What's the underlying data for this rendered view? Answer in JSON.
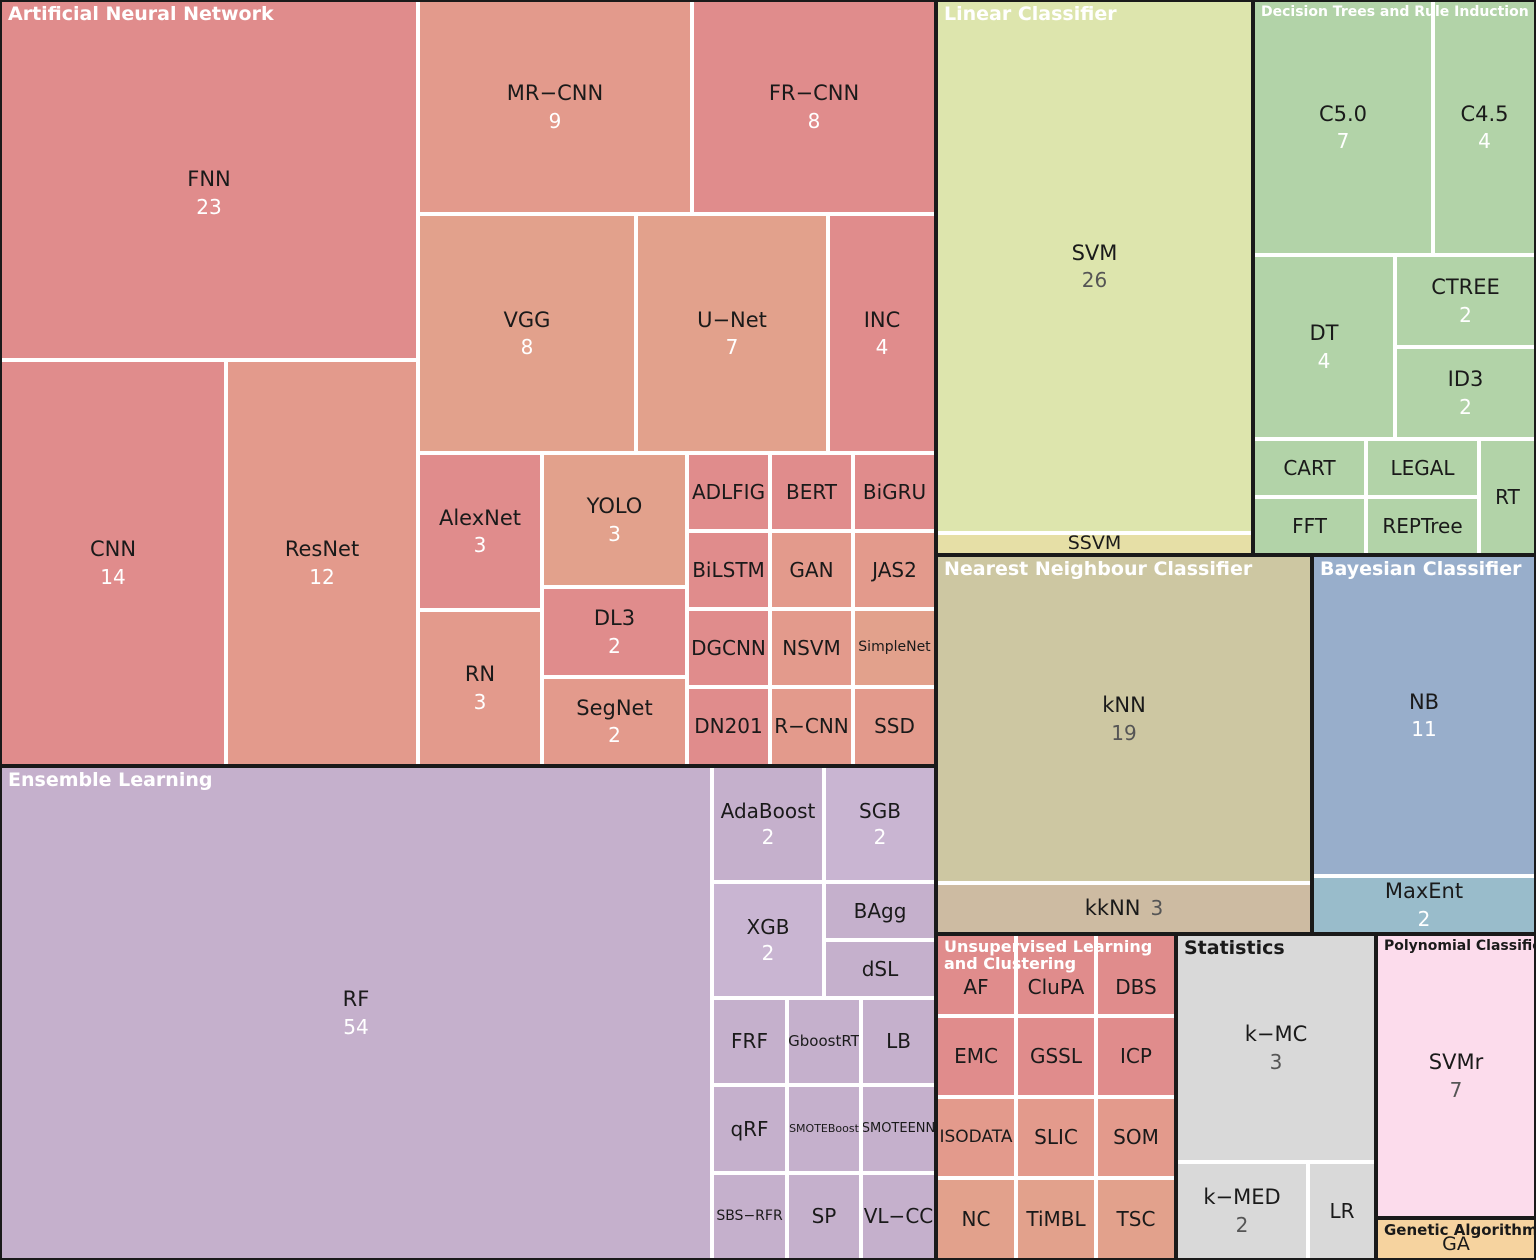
{
  "chart_data": {
    "type": "treemap",
    "groups": [
      {
        "name": "Artificial Neural Network",
        "color": "#e08c8c",
        "children": [
          {
            "label": "FNN",
            "value": 23,
            "color": "#e08c8c"
          },
          {
            "label": "CNN",
            "value": 14,
            "color": "#e08c8c"
          },
          {
            "label": "ResNet",
            "value": 12,
            "color": "#e39a8c"
          },
          {
            "label": "MR−CNN",
            "value": 9,
            "color": "#e39a8c"
          },
          {
            "label": "FR−CNN",
            "value": 8,
            "color": "#e08c8c"
          },
          {
            "label": "VGG",
            "value": 8,
            "color": "#e2a18c"
          },
          {
            "label": "U−Net",
            "value": 7,
            "color": "#e2a18c"
          },
          {
            "label": "INC",
            "value": 4,
            "color": "#e08c8c"
          },
          {
            "label": "AlexNet",
            "value": 3,
            "color": "#e08c8c"
          },
          {
            "label": "YOLO",
            "value": 3,
            "color": "#e2a18c"
          },
          {
            "label": "RN",
            "value": 3,
            "color": "#e39a8c"
          },
          {
            "label": "DL3",
            "value": 2,
            "color": "#e08c8c"
          },
          {
            "label": "SegNet",
            "value": 2,
            "color": "#e39a8c"
          },
          {
            "label": "ADLFIG",
            "color": "#e08c8c"
          },
          {
            "label": "BERT",
            "color": "#e08c8c"
          },
          {
            "label": "BiGRU",
            "color": "#e08c8c"
          },
          {
            "label": "BiLSTM",
            "color": "#e08c8c"
          },
          {
            "label": "GAN",
            "color": "#e39a8c"
          },
          {
            "label": "JAS2",
            "color": "#e39a8c"
          },
          {
            "label": "DGCNN",
            "color": "#e08c8c"
          },
          {
            "label": "NSVM",
            "color": "#e39a8c"
          },
          {
            "label": "SimpleNet",
            "color": "#e2a18c"
          },
          {
            "label": "DN201",
            "color": "#e08c8c"
          },
          {
            "label": "R−CNN",
            "color": "#e39a8c"
          },
          {
            "label": "SSD",
            "color": "#e39a8c"
          }
        ]
      },
      {
        "name": "Linear Classifier",
        "color": "#dde5ad",
        "children": [
          {
            "label": "SVM",
            "value": 26,
            "color": "#dde5ad"
          },
          {
            "label": "SSVM",
            "color": "#e6dfa6"
          }
        ]
      },
      {
        "name": "Decision Trees and Rule Induction",
        "color": "#b2d3a8",
        "children": [
          {
            "label": "C5.0",
            "value": 7,
            "color": "#b2d3a8"
          },
          {
            "label": "C4.5",
            "value": 4,
            "color": "#b2d3a8"
          },
          {
            "label": "DT",
            "value": 4,
            "color": "#b2d3a8"
          },
          {
            "label": "CTREE",
            "value": 2,
            "color": "#b2d3a8"
          },
          {
            "label": "ID3",
            "value": 2,
            "color": "#b2d3a8"
          },
          {
            "label": "CART",
            "color": "#b2d3a8"
          },
          {
            "label": "LEGAL",
            "color": "#b2d3a8"
          },
          {
            "label": "RT",
            "color": "#b2d3a8"
          },
          {
            "label": "FFT",
            "color": "#b2d3a8"
          },
          {
            "label": "REPTree",
            "color": "#b2d3a8"
          }
        ]
      },
      {
        "name": "Nearest Neighbour Classifier",
        "color": "#cdc7a2",
        "children": [
          {
            "label": "kNN",
            "value": 19,
            "color": "#cdc7a2"
          },
          {
            "label": "kkNN",
            "value": 3,
            "color": "#cdbba2"
          }
        ]
      },
      {
        "name": "Bayesian Classifier",
        "color": "#98aecb",
        "children": [
          {
            "label": "NB",
            "value": 11,
            "color": "#98aecb"
          },
          {
            "label": "MaxEnt",
            "value": 2,
            "color": "#99bccb"
          }
        ]
      },
      {
        "name": "Ensemble Learning",
        "color": "#c5b0cc",
        "children": [
          {
            "label": "RF",
            "value": 54,
            "color": "#c5b0cc"
          },
          {
            "label": "AdaBoost",
            "value": 2,
            "color": "#c5b0cc"
          },
          {
            "label": "SGB",
            "value": 2,
            "color": "#c9b5d2"
          },
          {
            "label": "XGB",
            "value": 2,
            "color": "#c9b5d2"
          },
          {
            "label": "BAgg",
            "color": "#c5b0cc"
          },
          {
            "label": "dSL",
            "color": "#c5b0cc"
          },
          {
            "label": "FRF",
            "color": "#c5b0cc"
          },
          {
            "label": "GboostRT",
            "color": "#c5b0cc"
          },
          {
            "label": "LB",
            "color": "#c5b0cc"
          },
          {
            "label": "qRF",
            "color": "#c5b0cc"
          },
          {
            "label": "SMOTEBoost",
            "color": "#c5b0cc"
          },
          {
            "label": "SMOTEENN",
            "color": "#c5b0cc"
          },
          {
            "label": "SBS−RFR",
            "color": "#c5b0cc"
          },
          {
            "label": "SP",
            "color": "#c5b0cc"
          },
          {
            "label": "VL−CC",
            "color": "#c5b0cc"
          }
        ]
      },
      {
        "name": "Unsupervised Learning\nand Clustering",
        "color": "#e08c8c",
        "children": [
          {
            "label": "AF",
            "color": "#e08c8c"
          },
          {
            "label": "CluPA",
            "color": "#e08c8c"
          },
          {
            "label": "DBS",
            "color": "#e08c8c"
          },
          {
            "label": "EMC",
            "color": "#e08c8c"
          },
          {
            "label": "GSSL",
            "color": "#e08c8c"
          },
          {
            "label": "ICP",
            "color": "#e08c8c"
          },
          {
            "label": "ISODATA",
            "color": "#e39a8c"
          },
          {
            "label": "SLIC",
            "color": "#e39a8c"
          },
          {
            "label": "SOM",
            "color": "#e39a8c"
          },
          {
            "label": "NC",
            "color": "#e2a18c"
          },
          {
            "label": "TiMBL",
            "color": "#e2a18c"
          },
          {
            "label": "TSC",
            "color": "#e2a18c"
          }
        ]
      },
      {
        "name": "Statistics",
        "color": "#d9d9d9",
        "children": [
          {
            "label": "k−MC",
            "value": 3,
            "color": "#d9d9d9"
          },
          {
            "label": "k−MED",
            "value": 2,
            "color": "#d9d9d9"
          },
          {
            "label": "LR",
            "color": "#d9d9d9"
          }
        ]
      },
      {
        "name": "Polynomial Classifier",
        "color": "#fcdcec",
        "children": [
          {
            "label": "SVMr",
            "value": 7,
            "color": "#fcdcec"
          }
        ]
      },
      {
        "name": "Genetic Algorithm",
        "color": "#f6d39f",
        "children": [
          {
            "label": "GA",
            "color": "#f6d39f"
          }
        ]
      }
    ]
  }
}
